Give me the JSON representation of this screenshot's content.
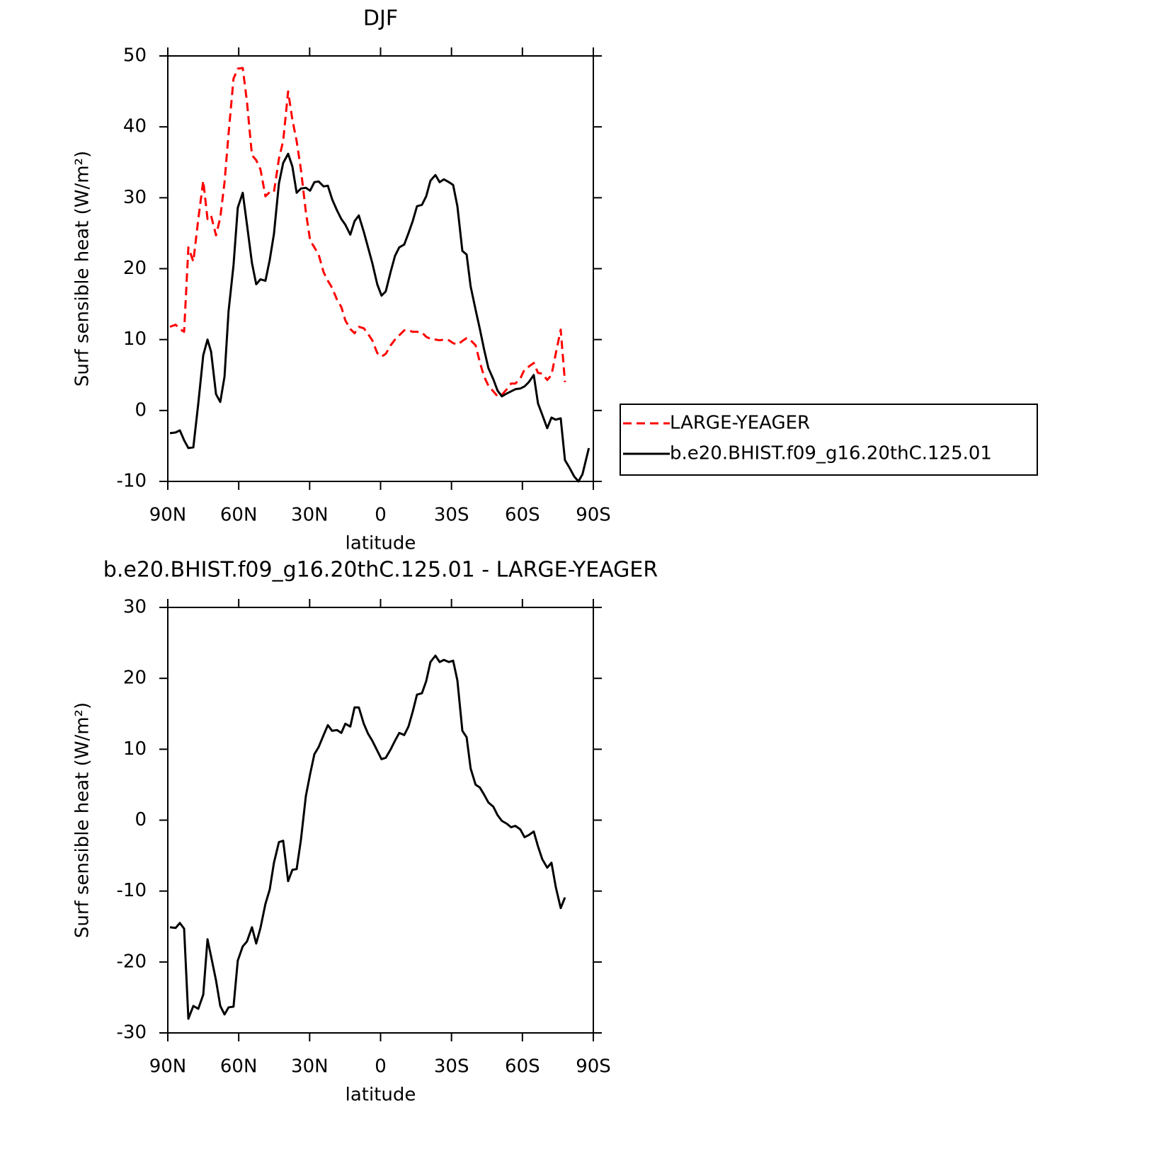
{
  "chart_data": [
    {
      "type": "line",
      "title": "DJF",
      "xlabel": "latitude",
      "ylabel": "Surf sensible heat (W/m²)",
      "x": [
        89.1,
        86.7,
        84.9,
        83.1,
        81.3,
        79.2,
        77.1,
        75,
        73.2,
        71.7,
        69.6,
        67.8,
        66,
        64.3,
        62.2,
        60.4,
        58.3,
        56.5,
        54.4,
        52.6,
        50.8,
        48.7,
        46.9,
        45.1,
        43,
        41.2,
        39.1,
        37.3,
        35.5,
        33.7,
        31.6,
        29.8,
        28,
        26.2,
        24.1,
        22.3,
        20.5,
        18.4,
        16.6,
        14.9,
        12.8,
        11,
        9.2,
        7.1,
        5.3,
        3.5,
        1.4,
        -0.4,
        -2.2,
        -4.3,
        -6.1,
        -7.9,
        -10,
        -11.8,
        -13.6,
        -15.4,
        -17.5,
        -19.3,
        -21.1,
        -23.2,
        -25,
        -26.8,
        -28.9,
        -30.7,
        -32.5,
        -34.6,
        -36.4,
        -38.1,
        -40.2,
        -42,
        -43.8,
        -45.6,
        -47.7,
        -49.5,
        -51.3,
        -53.4,
        -55.2,
        -57,
        -59.1,
        -60.9,
        -62.7,
        -64.8,
        -66.6,
        -68.4,
        -70.5,
        -72.3,
        -74.1,
        -76.2,
        -78,
        -79.8,
        -81.9,
        -83.7,
        -85.4,
        -88.1
      ],
      "series": [
        {
          "name": "LARGE-YEAGER",
          "color": "#ff0000",
          "linestyle": "dashed",
          "values": [
            11.8,
            12.1,
            11.5,
            11.1,
            23,
            21,
            27,
            32.4,
            27,
            27.5,
            24.7,
            27.2,
            32.2,
            39,
            46.8,
            48.2,
            48.3,
            43.5,
            36,
            35.3,
            34,
            30.2,
            30.8,
            30.8,
            35.5,
            38,
            45,
            41,
            38,
            34,
            28,
            24,
            23,
            22,
            19.5,
            18.3,
            17.3,
            15.6,
            14.6,
            12.7,
            11.5,
            10.9,
            11.8,
            11.6,
            10.8,
            9.9,
            8.1,
            7.6,
            8,
            9.2,
            10,
            10.6,
            11.3,
            11.3,
            11.1,
            11.1,
            11,
            10.4,
            10.1,
            10,
            9.9,
            10,
            9.9,
            9.5,
            9.3,
            9.8,
            10.2,
            9.9,
            9.2,
            6.8,
            4.8,
            3.5,
            2.7,
            2,
            2.2,
            3,
            3.8,
            3.8,
            4.5,
            5.8,
            6.2,
            6.7,
            5.3,
            5.2,
            4.3,
            5,
            8,
            11.4,
            4,
            null,
            null,
            null,
            null,
            null
          ]
        },
        {
          "name": "b.e20.BHIST.f09_g16.20thC.125.01",
          "color": "#000000",
          "linestyle": "solid",
          "values": [
            -3.2,
            -3.1,
            -2.8,
            -4.2,
            -5.3,
            -5.2,
            1.0,
            7.8,
            10,
            8.3,
            2.3,
            1.2,
            4.8,
            14,
            20.5,
            28.6,
            30.7,
            26.2,
            20.8,
            17.8,
            18.5,
            18.3,
            21.2,
            24.9,
            32,
            34.9,
            36.2,
            34.4,
            30.7,
            31.3,
            31.4,
            31,
            32.2,
            32.3,
            31.6,
            31.7,
            29.8,
            28.2,
            27,
            26.2,
            24.8,
            26.7,
            27.5,
            25.2,
            23,
            20.8,
            17.8,
            16.2,
            16.8,
            19.6,
            21.8,
            23,
            23.4,
            25,
            26.7,
            28.8,
            29,
            30.2,
            32.4,
            33.2,
            32.2,
            32.6,
            32.2,
            31.8,
            28.8,
            22.5,
            22,
            17.5,
            14.2,
            11.5,
            8.6,
            6,
            4.4,
            2.8,
            2,
            2.4,
            2.7,
            3,
            3.1,
            3.4,
            4,
            5,
            1,
            -0.6,
            -2.5,
            -1,
            -1.3,
            -1.1,
            -7,
            -8,
            -9.3,
            -10,
            -9,
            -5.3
          ]
        }
      ],
      "xlim": [
        90,
        -90
      ],
      "xticks": [
        {
          "value": 90,
          "label": "90N"
        },
        {
          "value": 60,
          "label": "60N"
        },
        {
          "value": 30,
          "label": "30N"
        },
        0,
        {
          "value": -30,
          "label": "30S"
        },
        {
          "value": -60,
          "label": "60S"
        },
        {
          "value": -90,
          "label": "90S"
        }
      ],
      "ylim": [
        -10,
        50
      ],
      "yticks": [
        -10,
        0,
        10,
        20,
        30,
        40,
        50
      ],
      "legend": "right"
    },
    {
      "type": "line",
      "title": "b.e20.BHIST.f09_g16.20thC.125.01 - LARGE-YEAGER",
      "xlabel": "latitude",
      "ylabel": "Surf sensible heat (W/m²)",
      "x": [
        89.1,
        86.7,
        84.9,
        83.1,
        81.3,
        79.2,
        77.1,
        75,
        73.2,
        71.7,
        69.6,
        67.8,
        66,
        64.3,
        62.2,
        60.4,
        58.3,
        56.5,
        54.4,
        52.6,
        50.8,
        48.7,
        46.9,
        45.1,
        43,
        41.2,
        39.1,
        37.3,
        35.5,
        33.7,
        31.6,
        29.8,
        28,
        26.2,
        24.1,
        22.3,
        20.5,
        18.4,
        16.6,
        14.9,
        12.8,
        11,
        9.2,
        7.1,
        5.3,
        3.5,
        1.4,
        -0.4,
        -2.2,
        -4.3,
        -6.1,
        -7.9,
        -10,
        -11.8,
        -13.6,
        -15.4,
        -17.5,
        -19.3,
        -21.1,
        -23.2,
        -25,
        -26.8,
        -28.9,
        -30.7,
        -32.5,
        -34.6,
        -36.4,
        -38.1,
        -40.2,
        -42,
        -43.8,
        -45.6,
        -47.7,
        -49.5,
        -51.3,
        -53.4,
        -55.2,
        -57,
        -59.1,
        -60.9,
        -62.7,
        -64.8,
        -66.6,
        -68.4,
        -70.5,
        -72.3,
        -74.1,
        -76.2,
        -78
      ],
      "series": [
        {
          "color": "#000000",
          "linestyle": "solid",
          "values": [
            -15.1,
            -15.2,
            -14.5,
            -15.3,
            -28,
            -26.2,
            -26.6,
            -24.6,
            -16.8,
            -19.2,
            -22.6,
            -26.2,
            -27.4,
            -26.4,
            -26.3,
            -19.8,
            -17.8,
            -17.1,
            -15.1,
            -17.4,
            -15.2,
            -11.8,
            -9.8,
            -6,
            -3.1,
            -2.9,
            -8.6,
            -7,
            -6.9,
            -2.8,
            3.4,
            6.5,
            9.3,
            10.3,
            12,
            13.4,
            12.6,
            12.7,
            12.3,
            13.6,
            13.2,
            15.9,
            15.9,
            13.6,
            12.2,
            11.2,
            9.8,
            8.6,
            8.8,
            10,
            11.2,
            12.3,
            12,
            13.2,
            15.3,
            17.7,
            17.9,
            19.6,
            22.3,
            23.2,
            22.3,
            22.6,
            22.3,
            22.5,
            19.7,
            12.6,
            11.7,
            7.3,
            5,
            4.6,
            3.6,
            2.5,
            1.9,
            0.7,
            -0.1,
            -0.5,
            -1,
            -0.8,
            -1.3,
            -2.4,
            -2.1,
            -1.6,
            -3.7,
            -5.5,
            -6.7,
            -6,
            -9.4,
            -12.4,
            -10.9
          ]
        }
      ],
      "xlim": [
        90,
        -90
      ],
      "xticks": [
        {
          "value": 90,
          "label": "90N"
        },
        {
          "value": 60,
          "label": "60N"
        },
        {
          "value": 30,
          "label": "30N"
        },
        0,
        {
          "value": -30,
          "label": "30S"
        },
        {
          "value": -60,
          "label": "60S"
        },
        {
          "value": -90,
          "label": "90S"
        }
      ],
      "ylim": [
        -30,
        30
      ],
      "yticks": [
        -30,
        -20,
        -10,
        0,
        10,
        20,
        30
      ]
    }
  ]
}
